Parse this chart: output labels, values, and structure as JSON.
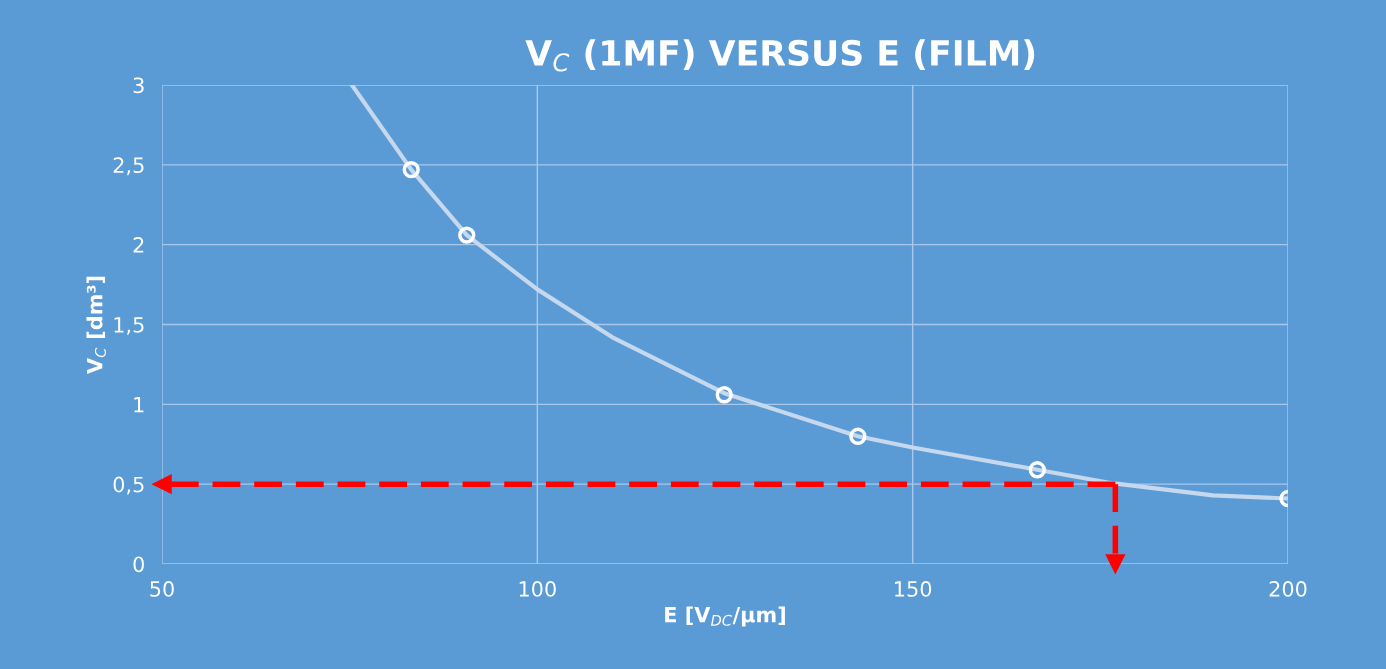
{
  "chart_data": {
    "type": "scatter",
    "title": "V$_{C}$ (1MF) VERSUS E (FILM)",
    "xlabel": "E [V$_{DC}$/µm]",
    "ylabel": "V$_{C}$ [dm³]",
    "series": [
      {
        "color": "#ffffff",
        "marker": "circle",
        "x": [
          83.2,
          90.6,
          124.9,
          142.7,
          166.6,
          200
        ],
        "values": [
          2.47,
          2.06,
          1.06,
          0.8,
          0.59,
          0.41
        ]
      },
      {
        "type": "line",
        "color": "#c5d8ee",
        "marker": "none",
        "x": [
          75.3,
          83.2,
          90.6,
          100,
          110,
          124.9,
          142.7,
          150,
          166.6,
          176,
          190,
          200
        ],
        "values": [
          3.0,
          2.47,
          2.06,
          1.72,
          1.42,
          1.07,
          0.8,
          0.73,
          0.59,
          0.51,
          0.43,
          0.41
        ]
      }
    ],
    "ref_lines": [
      {
        "axis": "y",
        "value": 0.5,
        "color": "#ff0000",
        "line_style": "dashed"
      },
      {
        "axis": "x",
        "value": 177,
        "color": "#ff0000",
        "line_style": "dashed"
      }
    ],
    "xlim": [
      50,
      200
    ],
    "xticks": [
      50,
      100,
      150,
      200
    ],
    "ylim": [
      0,
      3
    ],
    "yticks": [
      0,
      {
        "value": 0.5,
        "label": "0,5"
      },
      1,
      {
        "value": 1.5,
        "label": "1,5"
      },
      2,
      {
        "value": 2.5,
        "label": "2,5"
      },
      3
    ],
    "grid": true
  }
}
